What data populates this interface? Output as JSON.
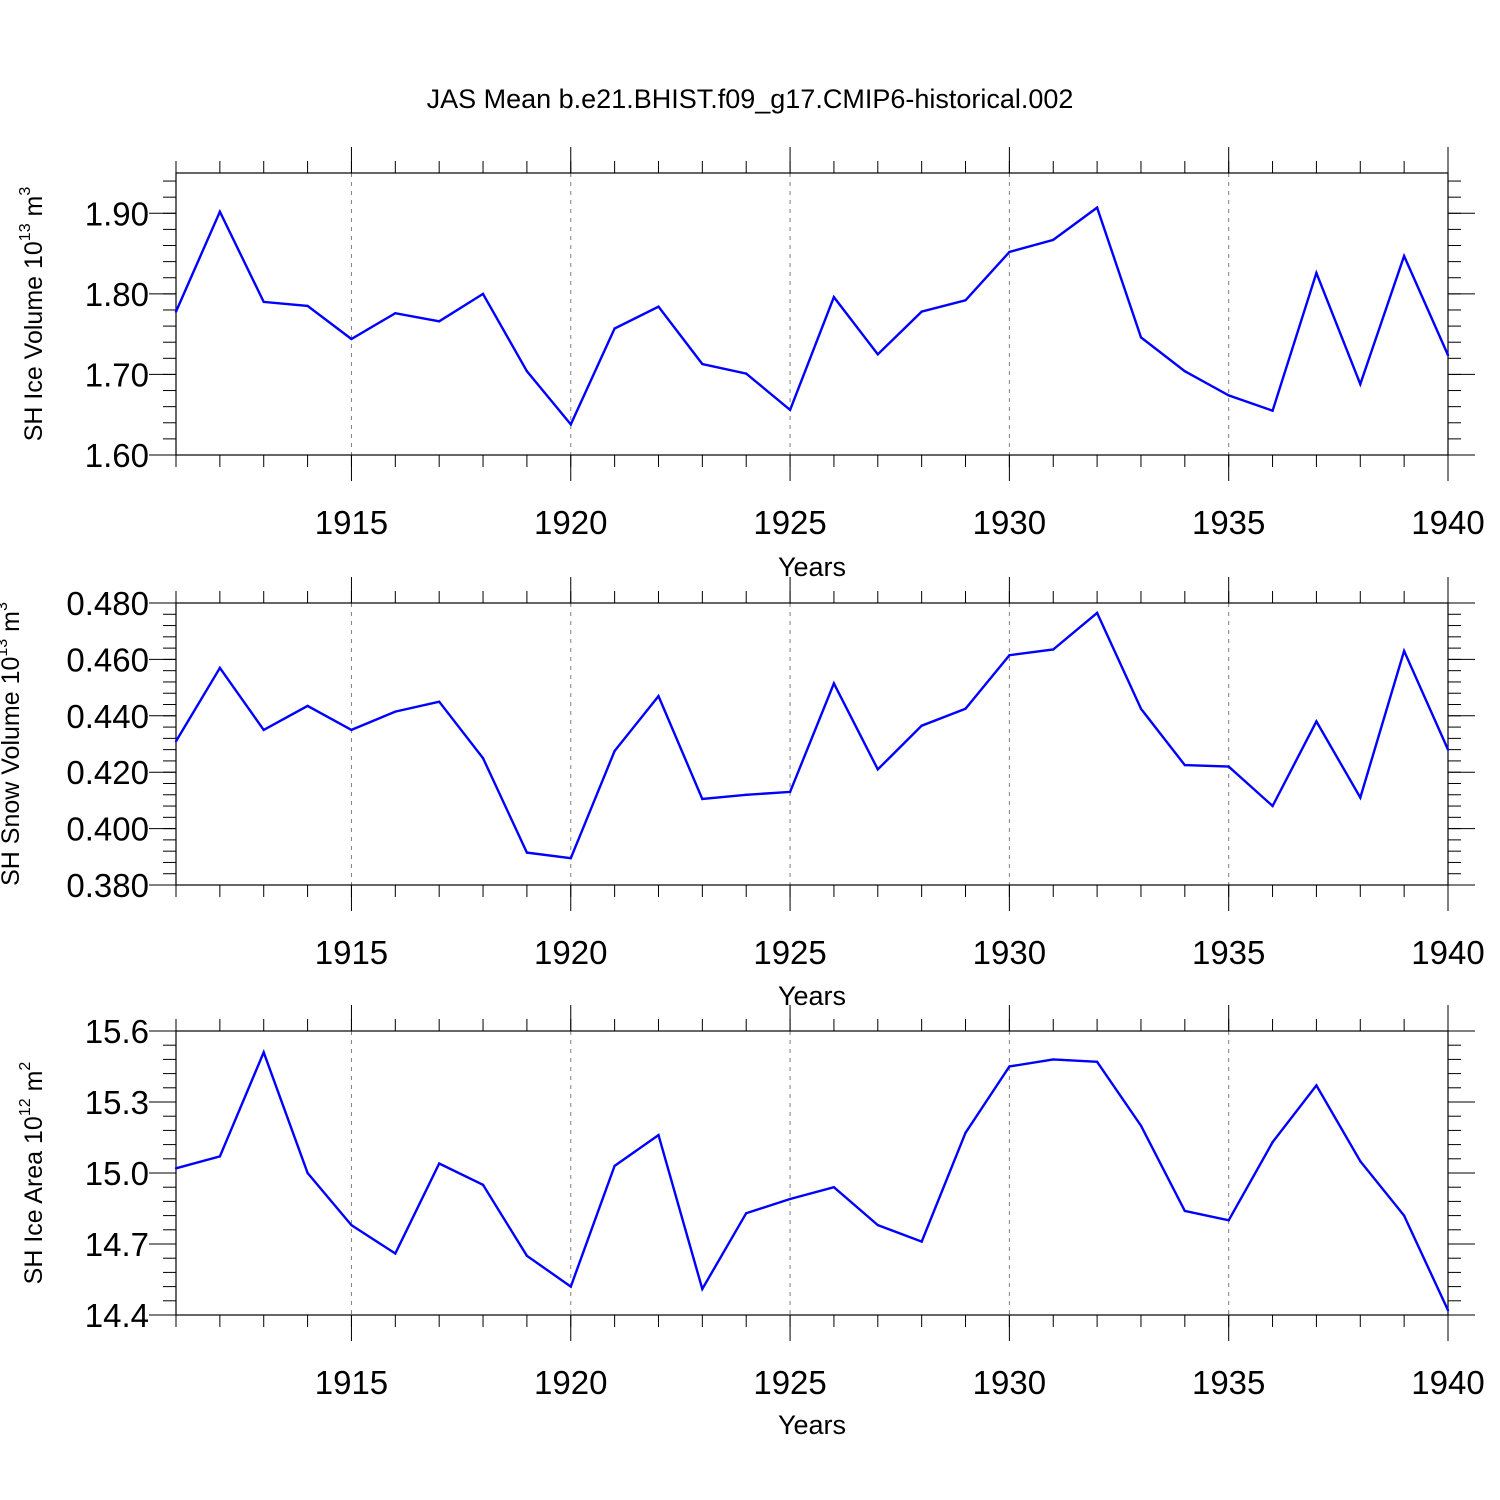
{
  "title": "JAS Mean b.e21.BHIST.f09_g17.CMIP6-historical.002",
  "colors": {
    "line": "#0000ff",
    "axis": "#000000",
    "grid": "#808080"
  },
  "chart_data": [
    {
      "type": "line",
      "name": "ice-volume",
      "ylabel": {
        "base": "SH Ice Volume 10",
        "exp1": "13",
        "unit": " m",
        "exp2": "3"
      },
      "xlabel": "Years",
      "xlim": [
        1911,
        1940
      ],
      "ylim": [
        1.6,
        1.95
      ],
      "yticks": [
        1.6,
        1.7,
        1.8,
        1.9
      ],
      "ytick_labels": [
        "1.60",
        "1.70",
        "1.80",
        "1.90"
      ],
      "xticks": [
        1915,
        1920,
        1925,
        1930,
        1935,
        1940
      ],
      "xtick_labels": [
        "1915",
        "1920",
        "1925",
        "1930",
        "1935",
        "1940"
      ],
      "x": [
        1911,
        1912,
        1913,
        1914,
        1915,
        1916,
        1917,
        1918,
        1919,
        1920,
        1921,
        1922,
        1923,
        1924,
        1925,
        1926,
        1927,
        1928,
        1929,
        1930,
        1931,
        1932,
        1933,
        1934,
        1935,
        1936,
        1937,
        1938,
        1939,
        1940
      ],
      "values": [
        1.778,
        1.902,
        1.79,
        1.785,
        1.744,
        1.776,
        1.766,
        1.8,
        1.704,
        1.638,
        1.757,
        1.784,
        1.713,
        1.701,
        1.656,
        1.796,
        1.725,
        1.778,
        1.792,
        1.852,
        1.867,
        1.907,
        1.746,
        1.704,
        1.674,
        1.655,
        1.826,
        1.688,
        1.847,
        1.724
      ]
    },
    {
      "type": "line",
      "name": "snow-volume",
      "ylabel": {
        "base": "SH Snow Volume 10",
        "exp1": "13",
        "unit": " m",
        "exp2": "3"
      },
      "xlabel": "Years",
      "xlim": [
        1911,
        1940
      ],
      "ylim": [
        0.38,
        0.48
      ],
      "yticks": [
        0.38,
        0.4,
        0.42,
        0.44,
        0.46,
        0.48
      ],
      "ytick_labels": [
        "0.380",
        "0.400",
        "0.420",
        "0.440",
        "0.460",
        "0.480"
      ],
      "xticks": [
        1915,
        1920,
        1925,
        1930,
        1935,
        1940
      ],
      "xtick_labels": [
        "1915",
        "1920",
        "1925",
        "1930",
        "1935",
        "1940"
      ],
      "x": [
        1911,
        1912,
        1913,
        1914,
        1915,
        1916,
        1917,
        1918,
        1919,
        1920,
        1921,
        1922,
        1923,
        1924,
        1925,
        1926,
        1927,
        1928,
        1929,
        1930,
        1931,
        1932,
        1933,
        1934,
        1935,
        1936,
        1937,
        1938,
        1939,
        1940
      ],
      "values": [
        0.431,
        0.457,
        0.435,
        0.4435,
        0.435,
        0.4415,
        0.445,
        0.425,
        0.3915,
        0.3895,
        0.4275,
        0.447,
        0.4105,
        0.412,
        0.413,
        0.4515,
        0.421,
        0.4365,
        0.4425,
        0.4615,
        0.4635,
        0.4765,
        0.4425,
        0.4225,
        0.422,
        0.408,
        0.438,
        0.411,
        0.463,
        0.428
      ]
    },
    {
      "type": "line",
      "name": "ice-area",
      "ylabel": {
        "base": "SH Ice Area 10",
        "exp1": "12",
        "unit": " m",
        "exp2": "2"
      },
      "xlabel": "Years",
      "xlim": [
        1911,
        1940
      ],
      "ylim": [
        14.4,
        15.6
      ],
      "yticks": [
        14.4,
        14.7,
        15.0,
        15.3,
        15.6
      ],
      "ytick_labels": [
        "14.4",
        "14.7",
        "15.0",
        "15.3",
        "15.6"
      ],
      "xticks": [
        1915,
        1920,
        1925,
        1930,
        1935,
        1940
      ],
      "xtick_labels": [
        "1915",
        "1920",
        "1925",
        "1930",
        "1935",
        "1940"
      ],
      "x": [
        1911,
        1912,
        1913,
        1914,
        1915,
        1916,
        1917,
        1918,
        1919,
        1920,
        1921,
        1922,
        1923,
        1924,
        1925,
        1926,
        1927,
        1928,
        1929,
        1930,
        1931,
        1932,
        1933,
        1934,
        1935,
        1936,
        1937,
        1938,
        1939,
        1940
      ],
      "values": [
        15.02,
        15.07,
        15.51,
        15.0,
        14.78,
        14.66,
        15.04,
        14.95,
        14.65,
        14.52,
        15.03,
        15.16,
        14.51,
        14.83,
        14.89,
        14.94,
        14.78,
        14.71,
        15.17,
        15.45,
        15.48,
        15.47,
        15.2,
        14.84,
        14.8,
        15.13,
        15.37,
        15.05,
        14.82,
        14.42
      ]
    }
  ]
}
